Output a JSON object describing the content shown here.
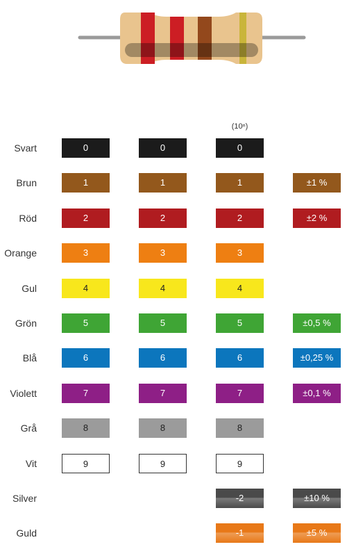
{
  "header": {
    "multiplier_note": "(10ⁿ)"
  },
  "rows": [
    {
      "name": "Svart",
      "color": "#1b1b1b",
      "text_color": "#ffffff",
      "cells": [
        0,
        0,
        0,
        null
      ]
    },
    {
      "name": "Brun",
      "color": "#93581c",
      "text_color": "#ffffff",
      "cells": [
        1,
        1,
        1,
        "±1 %"
      ]
    },
    {
      "name": "Röd",
      "color": "#b01c20",
      "text_color": "#ffffff",
      "cells": [
        2,
        2,
        2,
        "±2 %"
      ]
    },
    {
      "name": "Orange",
      "color": "#ee7f12",
      "text_color": "#ffffff",
      "cells": [
        3,
        3,
        3,
        null
      ]
    },
    {
      "name": "Gul",
      "color": "#f8e71c",
      "text_color": "#222222",
      "cells": [
        4,
        4,
        4,
        null
      ]
    },
    {
      "name": "Grön",
      "color": "#3fa535",
      "text_color": "#ffffff",
      "cells": [
        5,
        5,
        5,
        "±0,5 %"
      ]
    },
    {
      "name": "Blå",
      "color": "#0c76bd",
      "text_color": "#ffffff",
      "cells": [
        6,
        6,
        6,
        "±0,25 %"
      ]
    },
    {
      "name": "Violett",
      "color": "#8e1f86",
      "text_color": "#ffffff",
      "cells": [
        7,
        7,
        7,
        "±0,1 %"
      ]
    },
    {
      "name": "Grå",
      "color": "#9b9b9b",
      "text_color": "#222222",
      "cells": [
        8,
        8,
        8,
        null
      ]
    },
    {
      "name": "Vit",
      "color": "#ffffff",
      "text_color": "#222222",
      "cells": [
        9,
        9,
        9,
        null
      ]
    },
    {
      "name": "Silver",
      "color": "#4a4a4a",
      "text_color": "#ffffff",
      "cells": [
        null,
        null,
        -2,
        "±10 %"
      ]
    },
    {
      "name": "Guld",
      "color": "#e87817",
      "text_color": "#ffffff",
      "cells": [
        null,
        null,
        -1,
        "±5 %"
      ]
    }
  ]
}
